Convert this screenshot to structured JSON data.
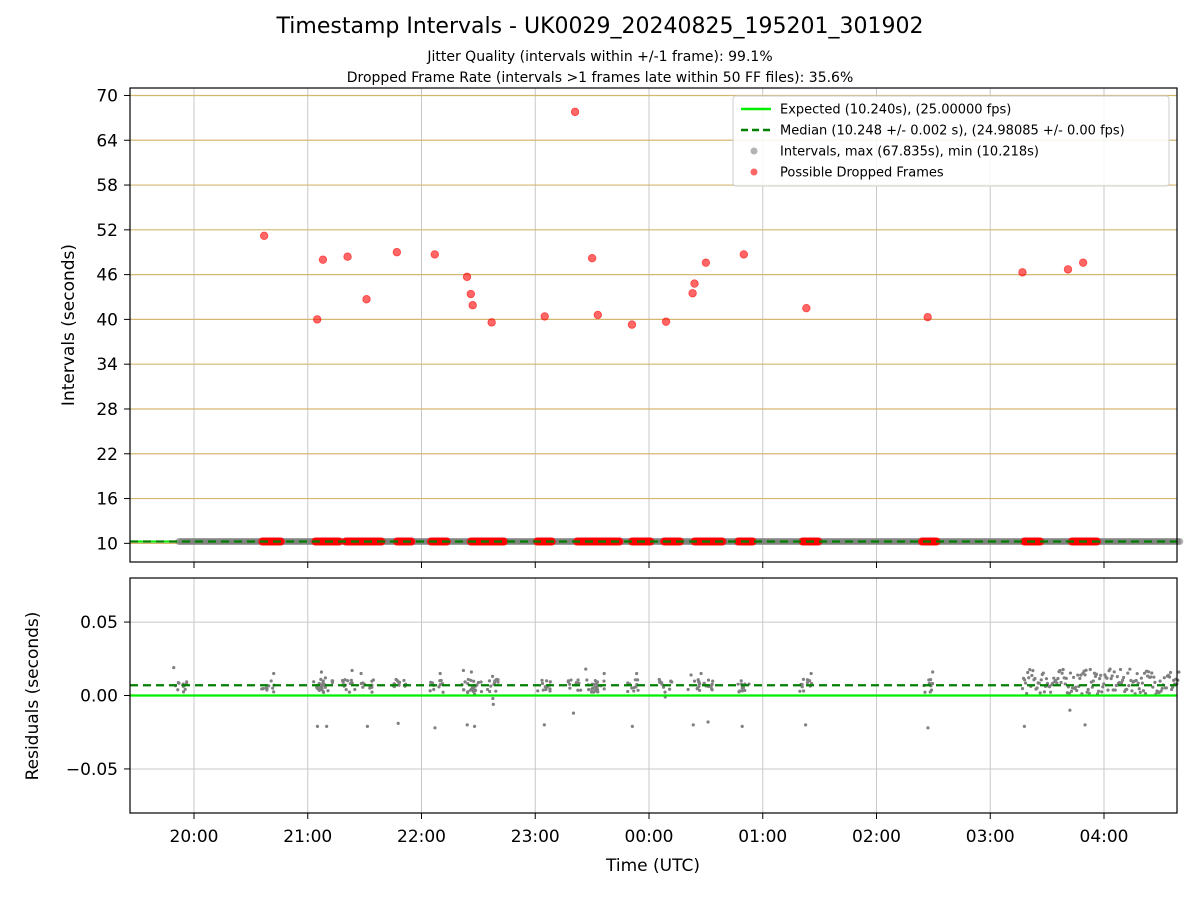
{
  "title": "Timestamp Intervals - UK0029_20240825_195201_301902",
  "subtitle_jitter": "Jitter Quality (intervals within +/-1 frame): 99.1%",
  "subtitle_dropped": "Dropped Frame Rate (intervals >1 frames late within 50 FF files): 35.6%",
  "colors": {
    "expected": "#00ee00",
    "median": "#008000",
    "intervals": "#808080",
    "dropped": "#ff0000",
    "hgrid_top": "#d4b872",
    "grid": "#c8c8c8"
  },
  "chart_data": [
    {
      "type": "scatter",
      "panel": "top",
      "ylabel": "Intervals (seconds)",
      "ylim": [
        7.5,
        71
      ],
      "yticks": [
        10,
        16,
        22,
        28,
        34,
        40,
        46,
        52,
        58,
        64,
        70
      ],
      "ytick_labels": [
        "10",
        "16",
        "22",
        "28",
        "34",
        "40",
        "46",
        "52",
        "58",
        "64",
        "70"
      ],
      "grid": true,
      "legend_position": "top-right",
      "legend": [
        {
          "label": "Expected (10.240s), (25.00000 fps)",
          "style": "solid-line",
          "color": "#00ee00"
        },
        {
          "label": "Median (10.248 +/- 0.002 s), (24.98085 +/- 0.00 fps)",
          "style": "dashed-line",
          "color": "#008000"
        },
        {
          "label": "Intervals, max (67.835s), min (10.218s)",
          "style": "marker",
          "color": "#808080"
        },
        {
          "label": "Possible Dropped Frames",
          "style": "marker",
          "color": "#ff0000"
        }
      ],
      "expected_value": 10.24,
      "median_value": 10.248,
      "interval_range": {
        "start": "19:52",
        "end": "04:40",
        "value": 10.25
      },
      "dropped_clusters_at_10_24": [
        [
          "20:36",
          "20:46"
        ],
        [
          "21:04",
          "21:17"
        ],
        [
          "21:20",
          "21:39"
        ],
        [
          "21:47",
          "21:55"
        ],
        [
          "22:05",
          "22:14"
        ],
        [
          "22:26",
          "22:44"
        ],
        [
          "23:01",
          "23:09"
        ],
        [
          "23:22",
          "23:45"
        ],
        [
          "23:51",
          "00:01"
        ],
        [
          "00:08",
          "00:17"
        ],
        [
          "00:24",
          "00:39"
        ],
        [
          "00:47",
          "00:55"
        ],
        [
          "01:21",
          "01:30"
        ],
        [
          "02:24",
          "02:32"
        ],
        [
          "03:18",
          "03:27"
        ],
        [
          "03:43",
          "03:57"
        ]
      ],
      "dropped_outliers": [
        {
          "t": "20:37",
          "y": 51.2
        },
        {
          "t": "21:05",
          "y": 40.0
        },
        {
          "t": "21:08",
          "y": 48.0
        },
        {
          "t": "21:21",
          "y": 48.4
        },
        {
          "t": "21:31",
          "y": 42.7
        },
        {
          "t": "21:47",
          "y": 49.0
        },
        {
          "t": "22:07",
          "y": 48.7
        },
        {
          "t": "22:24",
          "y": 45.7
        },
        {
          "t": "22:26",
          "y": 43.4
        },
        {
          "t": "22:27",
          "y": 41.9
        },
        {
          "t": "22:37",
          "y": 39.6
        },
        {
          "t": "23:05",
          "y": 40.4
        },
        {
          "t": "23:21",
          "y": 67.8
        },
        {
          "t": "23:30",
          "y": 48.2
        },
        {
          "t": "23:33",
          "y": 40.6
        },
        {
          "t": "23:51",
          "y": 39.3
        },
        {
          "t": "00:09",
          "y": 39.7
        },
        {
          "t": "00:23",
          "y": 43.5
        },
        {
          "t": "00:24",
          "y": 44.8
        },
        {
          "t": "00:30",
          "y": 47.6
        },
        {
          "t": "00:50",
          "y": 48.7
        },
        {
          "t": "01:23",
          "y": 41.5
        },
        {
          "t": "02:27",
          "y": 40.3
        },
        {
          "t": "03:17",
          "y": 46.3
        },
        {
          "t": "03:41",
          "y": 46.7
        },
        {
          "t": "03:49",
          "y": 47.6
        }
      ]
    },
    {
      "type": "scatter",
      "panel": "bottom",
      "xlabel": "Time (UTC)",
      "ylabel": "Residuals (seconds)",
      "ylim": [
        -0.08,
        0.08
      ],
      "yticks": [
        -0.05,
        0.0,
        0.05
      ],
      "ytick_labels": [
        "−0.05",
        "0.00",
        "0.05"
      ],
      "xlim": [
        "19:26",
        "04:40"
      ],
      "xticks": [
        "20:00",
        "21:00",
        "22:00",
        "23:00",
        "00:00",
        "01:00",
        "02:00",
        "03:00",
        "04:00"
      ],
      "grid": true,
      "expected_residual": 0.0,
      "median_residual": 0.007,
      "residual_clusters": [
        {
          "t": "19:53",
          "n": 14,
          "hi": 0.019
        },
        {
          "t": "20:39",
          "n": 12,
          "hi": 0.015
        },
        {
          "t": "21:06",
          "n": 16,
          "hi": 0.016,
          "low": [
            -0.021
          ]
        },
        {
          "t": "21:10",
          "n": 12,
          "hi": 0.012,
          "low": [
            -0.021
          ]
        },
        {
          "t": "21:22",
          "n": 14,
          "hi": 0.017
        },
        {
          "t": "21:31",
          "n": 12,
          "hi": 0.015,
          "low": [
            -0.021
          ]
        },
        {
          "t": "21:48",
          "n": 12,
          "hi": 0.01,
          "low": [
            -0.019
          ]
        },
        {
          "t": "22:08",
          "n": 12,
          "hi": 0.015,
          "low": [
            -0.022
          ]
        },
        {
          "t": "22:25",
          "n": 14,
          "hi": 0.017,
          "low": [
            -0.02
          ]
        },
        {
          "t": "22:28",
          "n": 12,
          "hi": 0.016,
          "low": [
            -0.021,
            0.001
          ]
        },
        {
          "t": "22:37",
          "n": 12,
          "hi": 0.013,
          "low": [
            -0.006,
            -0.002
          ]
        },
        {
          "t": "23:05",
          "n": 12,
          "hi": 0.01,
          "low": [
            -0.02
          ]
        },
        {
          "t": "23:21",
          "n": 12,
          "hi": 0.01,
          "low": [
            -0.012
          ]
        },
        {
          "t": "23:30",
          "n": 16,
          "hi": 0.018
        },
        {
          "t": "23:33",
          "n": 12,
          "hi": 0.015
        },
        {
          "t": "23:52",
          "n": 12,
          "hi": 0.015,
          "low": [
            -0.021
          ]
        },
        {
          "t": "00:09",
          "n": 12,
          "hi": 0.01,
          "low": [
            -0.001
          ]
        },
        {
          "t": "00:24",
          "n": 12,
          "hi": 0.014,
          "low": [
            -0.02
          ]
        },
        {
          "t": "00:31",
          "n": 12,
          "hi": 0.015,
          "low": [
            -0.018
          ]
        },
        {
          "t": "00:50",
          "n": 12,
          "hi": 0.01,
          "low": [
            -0.021
          ]
        },
        {
          "t": "01:23",
          "n": 12,
          "hi": 0.015,
          "low": [
            -0.02
          ]
        },
        {
          "t": "02:27",
          "n": 12,
          "hi": 0.016,
          "low": [
            -0.022
          ]
        }
      ],
      "dense_residual_band": {
        "start": "03:17",
        "end": "04:40",
        "min": 0.001,
        "max": 0.018,
        "low": [
          {
            "t": "03:18",
            "y": -0.021
          },
          {
            "t": "03:42",
            "y": -0.01
          },
          {
            "t": "03:50",
            "y": -0.02
          }
        ]
      }
    }
  ]
}
